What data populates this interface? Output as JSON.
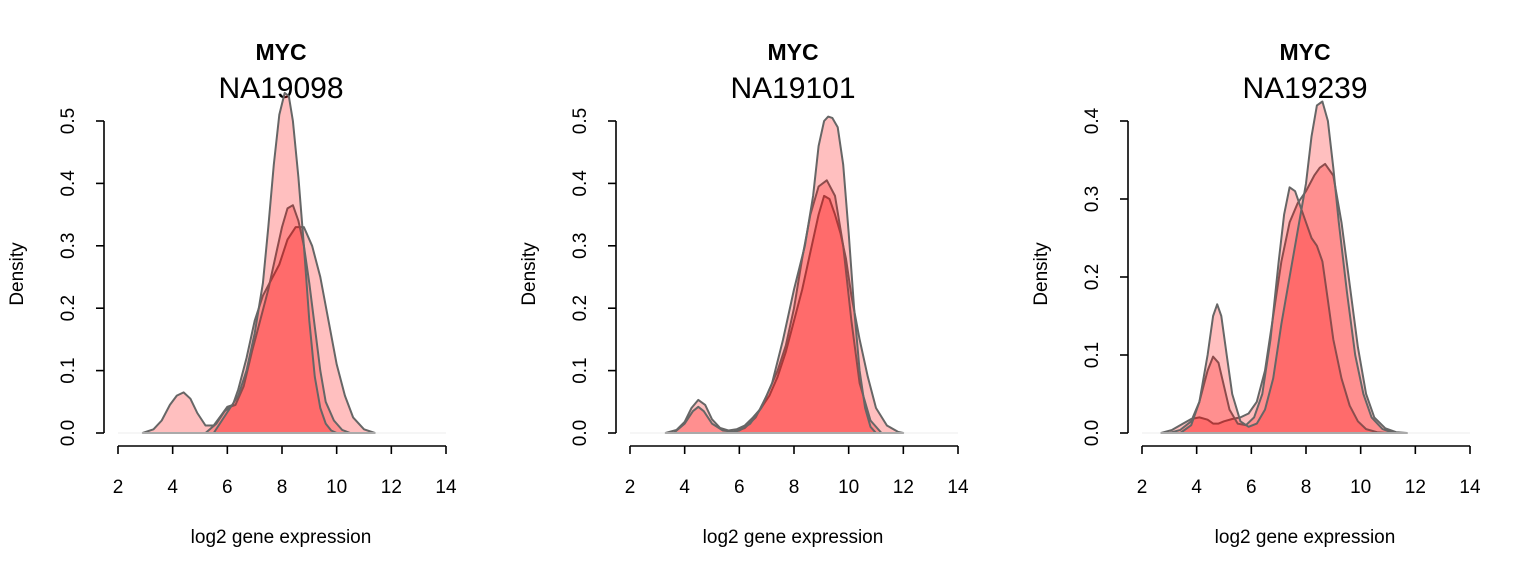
{
  "colors": {
    "fill": "#ff0000",
    "stroke": "#666666",
    "axis": "#000000"
  },
  "chart_data": [
    {
      "type": "area",
      "title": "MYC",
      "subtitle": "NA19098",
      "xlabel": "log2 gene expression",
      "ylabel": "Density",
      "xlim": [
        2,
        14
      ],
      "ylim": [
        0,
        0.5
      ],
      "xticks": [
        "2",
        "4",
        "6",
        "8",
        "10",
        "12",
        "14"
      ],
      "yticks": [
        "0.0",
        "0.1",
        "0.2",
        "0.3",
        "0.4",
        "0.5"
      ],
      "fill_opacity": 0.25,
      "series": [
        {
          "x": [
            2.9,
            3.3,
            3.6,
            3.9,
            4.15,
            4.4,
            4.65,
            4.9,
            5.2,
            5.5,
            5.8,
            6.0,
            6.2,
            6.4,
            6.7,
            7.0,
            7.3,
            7.6,
            7.9,
            8.2,
            8.5,
            8.8,
            9.1,
            9.4,
            9.7,
            10.0,
            10.3,
            10.6,
            11.0,
            11.4
          ],
          "y": [
            0.0,
            0.006,
            0.02,
            0.045,
            0.06,
            0.065,
            0.055,
            0.032,
            0.012,
            0.012,
            0.03,
            0.042,
            0.045,
            0.07,
            0.12,
            0.18,
            0.22,
            0.245,
            0.27,
            0.31,
            0.33,
            0.33,
            0.3,
            0.25,
            0.18,
            0.11,
            0.06,
            0.025,
            0.006,
            0.0
          ]
        },
        {
          "x": [
            5.2,
            5.6,
            5.9,
            6.1,
            6.3,
            6.6,
            6.9,
            7.2,
            7.5,
            7.8,
            8.0,
            8.2,
            8.4,
            8.6,
            8.8,
            9.0,
            9.2,
            9.4,
            9.6,
            9.9,
            10.2,
            10.5
          ],
          "y": [
            0.0,
            0.015,
            0.035,
            0.042,
            0.045,
            0.075,
            0.13,
            0.18,
            0.23,
            0.29,
            0.33,
            0.36,
            0.365,
            0.34,
            0.3,
            0.24,
            0.17,
            0.1,
            0.05,
            0.02,
            0.005,
            0.0
          ]
        },
        {
          "x": [
            5.5,
            5.8,
            6.1,
            6.4,
            6.7,
            7.0,
            7.3,
            7.5,
            7.7,
            7.9,
            8.1,
            8.25,
            8.4,
            8.6,
            8.8,
            9.0,
            9.2,
            9.4,
            9.6,
            9.8,
            10.0
          ],
          "y": [
            0.0,
            0.02,
            0.04,
            0.06,
            0.1,
            0.16,
            0.24,
            0.33,
            0.43,
            0.51,
            0.545,
            0.54,
            0.5,
            0.41,
            0.3,
            0.18,
            0.09,
            0.04,
            0.015,
            0.004,
            0.0
          ]
        }
      ]
    },
    {
      "type": "area",
      "title": "MYC",
      "subtitle": "NA19101",
      "xlabel": "log2 gene expression",
      "ylabel": "Density",
      "xlim": [
        2,
        14
      ],
      "ylim": [
        0,
        0.5
      ],
      "xticks": [
        "2",
        "4",
        "6",
        "8",
        "10",
        "12",
        "14"
      ],
      "yticks": [
        "0.0",
        "0.1",
        "0.2",
        "0.3",
        "0.4",
        "0.5"
      ],
      "fill_opacity": 0.25,
      "series": [
        {
          "x": [
            3.3,
            3.7,
            4.0,
            4.25,
            4.5,
            4.75,
            5.0,
            5.3,
            5.6,
            5.9,
            6.2,
            6.5,
            6.8,
            7.1,
            7.4,
            7.7,
            8.0,
            8.3,
            8.6,
            8.9,
            9.1,
            9.3,
            9.5,
            9.7,
            9.9,
            10.1,
            10.4,
            10.7,
            11.0,
            11.4,
            11.8,
            12.0
          ],
          "y": [
            0.0,
            0.005,
            0.018,
            0.04,
            0.053,
            0.045,
            0.022,
            0.008,
            0.004,
            0.006,
            0.012,
            0.025,
            0.04,
            0.06,
            0.09,
            0.13,
            0.18,
            0.23,
            0.29,
            0.35,
            0.38,
            0.375,
            0.35,
            0.32,
            0.28,
            0.22,
            0.15,
            0.09,
            0.04,
            0.012,
            0.002,
            0.0
          ]
        },
        {
          "x": [
            3.6,
            4.0,
            4.3,
            4.5,
            4.7,
            5.0,
            5.4,
            5.8,
            6.2,
            6.6,
            7.0,
            7.4,
            7.7,
            8.0,
            8.3,
            8.6,
            8.9,
            9.2,
            9.5,
            9.8,
            10.1,
            10.4,
            10.8,
            11.2
          ],
          "y": [
            0.0,
            0.015,
            0.035,
            0.042,
            0.035,
            0.015,
            0.004,
            0.002,
            0.008,
            0.025,
            0.06,
            0.1,
            0.14,
            0.2,
            0.28,
            0.35,
            0.395,
            0.405,
            0.38,
            0.3,
            0.18,
            0.08,
            0.02,
            0.0
          ]
        },
        {
          "x": [
            5.6,
            6.0,
            6.4,
            6.8,
            7.2,
            7.6,
            8.0,
            8.4,
            8.7,
            8.9,
            9.1,
            9.25,
            9.4,
            9.6,
            9.8,
            10.0,
            10.2,
            10.4,
            10.6,
            10.8,
            11.0
          ],
          "y": [
            0.0,
            0.004,
            0.015,
            0.04,
            0.08,
            0.15,
            0.23,
            0.3,
            0.38,
            0.46,
            0.5,
            0.507,
            0.505,
            0.49,
            0.43,
            0.32,
            0.2,
            0.1,
            0.04,
            0.01,
            0.0
          ]
        }
      ]
    },
    {
      "type": "area",
      "title": "MYC",
      "subtitle": "NA19239",
      "xlabel": "log2 gene expression",
      "ylabel": "Density",
      "xlim": [
        2,
        14
      ],
      "ylim": [
        0,
        0.4
      ],
      "xticks": [
        "2",
        "4",
        "6",
        "8",
        "10",
        "12",
        "14"
      ],
      "yticks": [
        "0.0",
        "0.1",
        "0.2",
        "0.3",
        "0.4"
      ],
      "fill_opacity": 0.25,
      "series": [
        {
          "x": [
            2.7,
            3.1,
            3.5,
            3.8,
            4.1,
            4.4,
            4.6,
            4.8,
            5.0,
            5.3,
            5.6,
            5.9,
            6.2,
            6.5,
            6.8,
            7.1,
            7.4,
            7.7,
            8.0,
            8.3,
            8.5,
            8.7,
            9.0,
            9.3,
            9.6,
            9.9,
            10.2,
            10.5,
            10.9,
            11.3,
            11.7
          ],
          "y": [
            0.0,
            0.004,
            0.012,
            0.018,
            0.02,
            0.017,
            0.012,
            0.012,
            0.015,
            0.018,
            0.02,
            0.025,
            0.04,
            0.08,
            0.15,
            0.22,
            0.27,
            0.295,
            0.31,
            0.33,
            0.34,
            0.345,
            0.33,
            0.27,
            0.19,
            0.11,
            0.05,
            0.02,
            0.006,
            0.001,
            0.0
          ]
        },
        {
          "x": [
            3.0,
            3.4,
            3.8,
            4.1,
            4.4,
            4.6,
            4.8,
            5.0,
            5.2,
            5.5,
            5.8,
            6.1,
            6.4,
            6.7,
            7.0,
            7.2,
            7.4,
            7.6,
            7.8,
            8.0,
            8.2,
            8.4,
            8.6,
            8.8,
            9.0,
            9.3,
            9.6,
            9.9,
            10.2,
            10.6,
            11.0
          ],
          "y": [
            0.0,
            0.004,
            0.015,
            0.04,
            0.08,
            0.098,
            0.09,
            0.06,
            0.03,
            0.012,
            0.01,
            0.02,
            0.05,
            0.12,
            0.22,
            0.28,
            0.315,
            0.31,
            0.29,
            0.27,
            0.25,
            0.24,
            0.22,
            0.17,
            0.12,
            0.07,
            0.035,
            0.015,
            0.005,
            0.001,
            0.0
          ]
        },
        {
          "x": [
            3.4,
            3.8,
            4.1,
            4.4,
            4.6,
            4.75,
            4.9,
            5.1,
            5.3,
            5.6,
            5.9,
            6.2,
            6.5,
            6.8,
            7.1,
            7.4,
            7.7,
            8.0,
            8.2,
            8.4,
            8.6,
            8.8,
            9.0,
            9.2,
            9.5,
            9.8,
            10.1,
            10.4,
            10.8,
            11.2
          ],
          "y": [
            0.0,
            0.01,
            0.04,
            0.1,
            0.15,
            0.165,
            0.15,
            0.1,
            0.05,
            0.015,
            0.008,
            0.012,
            0.03,
            0.07,
            0.14,
            0.2,
            0.26,
            0.32,
            0.38,
            0.42,
            0.425,
            0.4,
            0.34,
            0.27,
            0.18,
            0.1,
            0.05,
            0.02,
            0.005,
            0.0
          ]
        }
      ]
    }
  ]
}
